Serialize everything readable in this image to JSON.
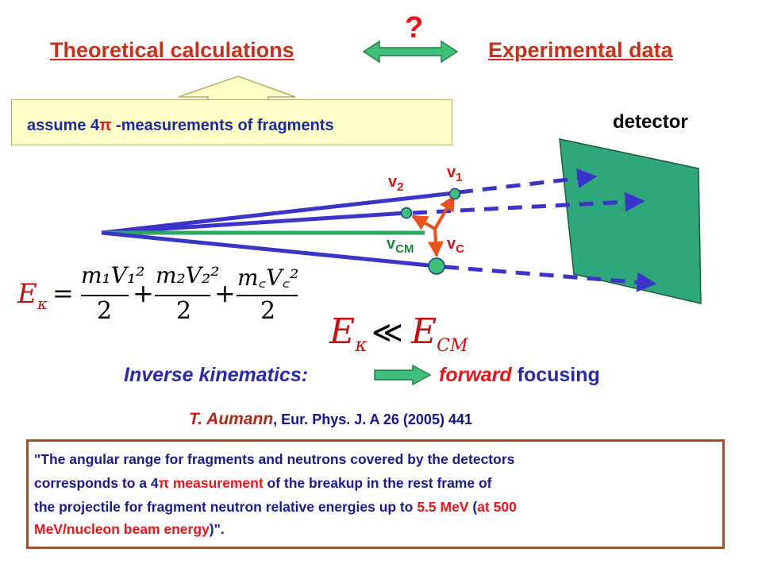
{
  "header": {
    "theory": "Theoretical calculations",
    "experiment": "Experimental data",
    "question": "?"
  },
  "assume": {
    "pre": "assume 4",
    "pi": "π",
    "post": " -measurements of fragments"
  },
  "detector_label": "detector",
  "velocity_labels": {
    "v1": "v",
    "v1_sub": "1",
    "v2": "v",
    "v2_sub": "2",
    "vcm": "v",
    "vcm_sub": "CM",
    "vc": "v",
    "vc_sub": "C"
  },
  "equation": {
    "lhs": "E",
    "lhs_sub": "κ",
    "eq": "=",
    "t1_num": "m₁V₁²",
    "t1_den": "2",
    "t2_num": "m₂V₂²",
    "t2_den": "2",
    "t3_num": "m꜀V꜀²",
    "t3_den": "2",
    "plus": "+",
    "rel_lhs": "E",
    "rel_lhs_sub": "κ",
    "rel_sym": "≪",
    "rel_rhs": "E",
    "rel_rhs_sub": "CM"
  },
  "kinematics": {
    "label": "Inverse kinematics:",
    "forward": "forward",
    "focusing": " focusing"
  },
  "reference": {
    "author": "T. Aumann",
    "citation": ", Eur. Phys. J. A 26 (2005) 441"
  },
  "quote": {
    "line1": "\"The angular range for fragments and neutrons covered by the detectors",
    "line2_a": "corresponds to a 4",
    "line2_pi": "π",
    "line2_b": " measurement",
    "line2_c": " of the breakup in the rest frame of",
    "line3": "the projectile for fragment neutron relative energies up to ",
    "line3_energy": "5.5 MeV",
    "line3_b": " (",
    "line3_c": "at 500",
    "line4_a": "MeV/nucleon beam energy",
    "line4_b": ")\"."
  },
  "colors": {
    "header": "#c8301c",
    "arrow_green": "#2aa860",
    "vector_blue": "#3a34c8",
    "detector": "#2ea87a",
    "red_vector": "#e8501c"
  }
}
